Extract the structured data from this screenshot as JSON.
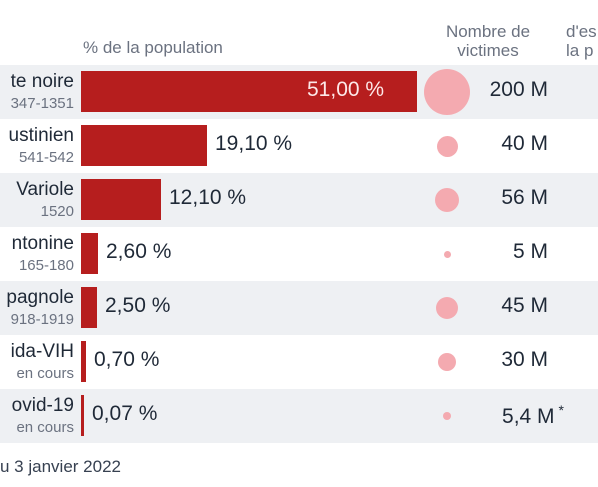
{
  "headers": {
    "population": "% de la population",
    "victims": "Nombre de victimes",
    "esperance_partial": "d'es\nla p"
  },
  "footer": "u 3 janvier 2022",
  "chart_data": {
    "type": "bar",
    "title": "",
    "xlabel": "% de la population",
    "ylabel": "",
    "xlim": [
      0,
      51
    ],
    "grid": false,
    "categories": [
      "te noire",
      "ustinien",
      "Variole",
      "ntonine",
      "pagnole",
      "ida-VIH",
      "ovid-19"
    ],
    "periods": [
      "347-1351",
      "541-542",
      "1520",
      "165-180",
      "918-1919",
      "en cours",
      "en cours"
    ],
    "series": [
      {
        "values": [
          51.0,
          19.1,
          12.1,
          2.6,
          2.5,
          0.7,
          0.07
        ]
      }
    ],
    "value_labels": [
      "51,00 %",
      "19,10 %",
      "12,10 %",
      "2,60 %",
      "2,50 %",
      "0,70 %",
      "0,07 %"
    ],
    "victims_millions": [
      200,
      40,
      56,
      5,
      45,
      30,
      5.4
    ],
    "victim_labels": [
      "200 M",
      "40 M",
      "56 M",
      "5 M",
      "45 M",
      "30 M",
      "5,4 M"
    ],
    "victim_notes": [
      "",
      "",
      "",
      "",
      "",
      "",
      "*"
    ],
    "colors": {
      "bar": "#b61e1e",
      "bubble": "#f4aab0",
      "row_shade": "#eef0f3"
    }
  }
}
